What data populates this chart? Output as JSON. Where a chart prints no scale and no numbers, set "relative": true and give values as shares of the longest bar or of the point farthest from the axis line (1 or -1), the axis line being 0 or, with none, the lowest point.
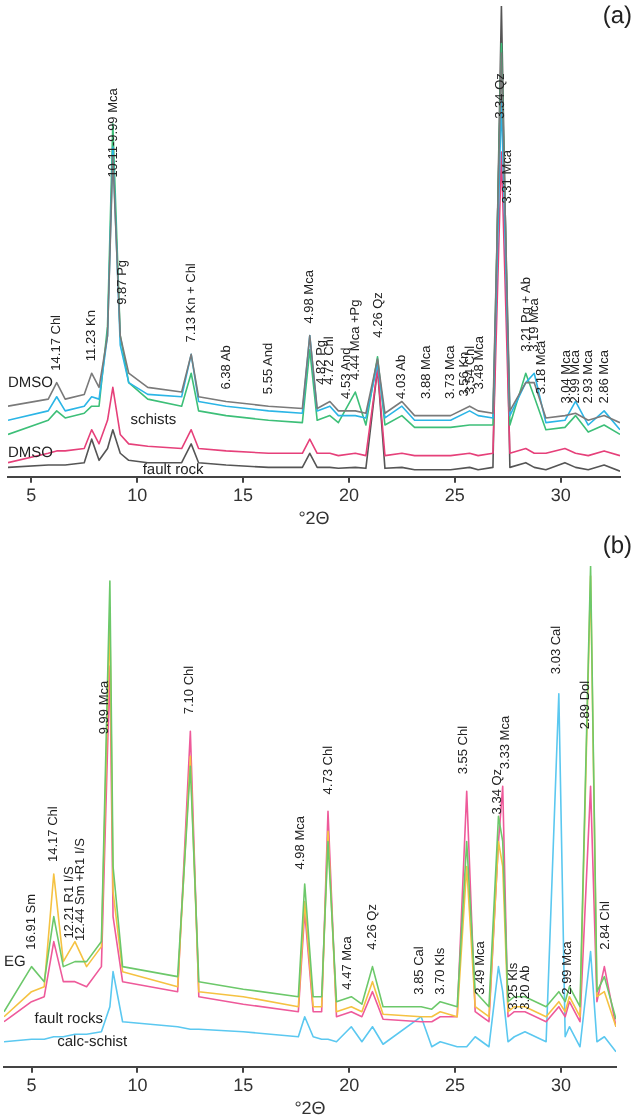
{
  "chart_data": [
    {
      "type": "line",
      "title": "(a)",
      "xlabel": "°2Θ",
      "relative": true,
      "grid": false,
      "legend": false,
      "marker": "none",
      "xlim": [
        3.9,
        32.8
      ],
      "xticks": [
        5,
        10,
        15,
        20,
        25,
        30
      ],
      "x": [
        3.9,
        5.8,
        6.2,
        6.6,
        7.5,
        7.85,
        8.2,
        8.6,
        8.85,
        9.2,
        9.6,
        10.5,
        12.1,
        12.55,
        12.9,
        14.2,
        16.2,
        17.8,
        18.15,
        18.5,
        19.1,
        19.5,
        20.3,
        20.8,
        21.35,
        21.7,
        22.5,
        23.1,
        24.8,
        25.7,
        26.1,
        26.8,
        27.2,
        27.6,
        28.35,
        28.75,
        29.3,
        30.2,
        30.7,
        31.3,
        32.05,
        32.8
      ],
      "series": [
        {
          "color": "#7a7a7a",
          "values": [
            0.15,
            0.165,
            0.2,
            0.165,
            0.175,
            0.22,
            0.19,
            0.3,
            0.68,
            0.3,
            0.22,
            0.19,
            0.18,
            0.26,
            0.17,
            0.16,
            0.15,
            0.145,
            0.3,
            0.145,
            0.16,
            0.14,
            0.14,
            0.135,
            0.25,
            0.135,
            0.16,
            0.13,
            0.13,
            0.15,
            0.14,
            0.135,
            0.9,
            0.14,
            0.2,
            0.2,
            0.125,
            0.13,
            0.135,
            0.12,
            0.13,
            0.115
          ]
        },
        {
          "color": "#2bb5e6",
          "values": [
            0.12,
            0.14,
            0.17,
            0.14,
            0.15,
            0.17,
            0.165,
            0.3,
            0.7,
            0.28,
            0.2,
            0.175,
            0.17,
            0.26,
            0.16,
            0.15,
            0.14,
            0.135,
            0.3,
            0.14,
            0.15,
            0.13,
            0.13,
            0.125,
            0.24,
            0.125,
            0.15,
            0.12,
            0.12,
            0.14,
            0.13,
            0.125,
            0.8,
            0.13,
            0.2,
            0.22,
            0.115,
            0.12,
            0.16,
            0.11,
            0.14,
            0.1
          ]
        },
        {
          "color": "#3dbf78",
          "values": [
            0.09,
            0.12,
            0.14,
            0.125,
            0.135,
            0.15,
            0.15,
            0.32,
            0.75,
            0.3,
            0.2,
            0.165,
            0.15,
            0.22,
            0.14,
            0.13,
            0.12,
            0.115,
            0.27,
            0.12,
            0.13,
            0.115,
            0.18,
            0.11,
            0.255,
            0.11,
            0.13,
            0.105,
            0.105,
            0.11,
            0.11,
            0.11,
            0.92,
            0.11,
            0.22,
            0.17,
            0.1,
            0.105,
            0.13,
            0.095,
            0.11,
            0.09
          ]
        },
        {
          "color": "#e6407a",
          "values": [
            0.03,
            0.05,
            0.055,
            0.055,
            0.06,
            0.1,
            0.07,
            0.12,
            0.19,
            0.09,
            0.07,
            0.065,
            0.06,
            0.1,
            0.06,
            0.055,
            0.05,
            0.05,
            0.08,
            0.05,
            0.05,
            0.045,
            0.05,
            0.045,
            0.23,
            0.045,
            0.05,
            0.045,
            0.045,
            0.05,
            0.045,
            0.05,
            0.69,
            0.05,
            0.06,
            0.05,
            0.05,
            0.06,
            0.05,
            0.045,
            0.055,
            0.045
          ]
        },
        {
          "color": "#555555",
          "values": [
            0.02,
            0.025,
            0.025,
            0.025,
            0.03,
            0.08,
            0.035,
            0.06,
            0.1,
            0.05,
            0.035,
            0.03,
            0.03,
            0.07,
            0.03,
            0.025,
            0.02,
            0.02,
            0.05,
            0.02,
            0.02,
            0.018,
            0.02,
            0.018,
            0.23,
            0.018,
            0.02,
            0.015,
            0.015,
            0.02,
            0.015,
            0.02,
            1.0,
            0.02,
            0.03,
            0.02,
            0.015,
            0.03,
            0.02,
            0.015,
            0.025,
            0.012
          ]
        }
      ],
      "annotations": [
        "DMSO",
        "schists",
        "DMSO",
        "fault rock",
        {
          "text": "14.17 Chl",
          "x": 6.2,
          "y": 0.2
        },
        {
          "text": "11.23 Kn",
          "x": 7.85,
          "y": 0.22
        },
        {
          "text": "9.87 Pg",
          "x": 9.3,
          "y": 0.34
        },
        {
          "text": "10.11-9.99 Mca",
          "x": 8.9,
          "y": 0.61
        },
        {
          "text": "7.13 Kn + Chl",
          "x": 12.55,
          "y": 0.26
        },
        {
          "text": "6.38 Ab",
          "x": 14.2,
          "y": 0.16
        },
        {
          "text": "5.55 And",
          "x": 16.2,
          "y": 0.15
        },
        {
          "text": "4.98 Mca",
          "x": 18.15,
          "y": 0.3
        },
        {
          "text": "4.82 Pg",
          "x": 18.7,
          "y": 0.17
        },
        {
          "text": "4.72 Chl",
          "x": 19.1,
          "y": 0.17
        },
        {
          "text": "4.53 And",
          "x": 19.9,
          "y": 0.14
        },
        {
          "text": "4.44 Mca +Pg",
          "x": 20.3,
          "y": 0.18
        },
        {
          "text": "4.26 Qz",
          "x": 21.4,
          "y": 0.27
        },
        {
          "text": "4.03 Ab",
          "x": 22.5,
          "y": 0.14
        },
        {
          "text": "3.88 Mca",
          "x": 23.65,
          "y": 0.14
        },
        {
          "text": "3.73 Mca",
          "x": 24.8,
          "y": 0.14
        },
        {
          "text": "3.56 Kn",
          "x": 25.45,
          "y": 0.145
        },
        {
          "text": "3.54 Chl",
          "x": 25.75,
          "y": 0.15
        },
        {
          "text": "3.48 Mca",
          "x": 26.15,
          "y": 0.16
        },
        {
          "text": "3.34 Qz",
          "x": 27.15,
          "y": 0.735
        },
        {
          "text": "3.31 Mca",
          "x": 27.5,
          "y": 0.555
        },
        {
          "text": "3.21 Pg + Ab",
          "x": 28.4,
          "y": 0.24
        },
        {
          "text": "3.19 Mca",
          "x": 28.75,
          "y": 0.24
        },
        {
          "text": "3.18 Mca",
          "x": 29.1,
          "y": 0.15
        },
        {
          "text": "3.04 Mca",
          "x": 30.25,
          "y": 0.13
        },
        {
          "text": "2.99 Mca",
          "x": 30.7,
          "y": 0.13
        },
        {
          "text": "2.93 Mca",
          "x": 31.3,
          "y": 0.13
        },
        {
          "text": "2.86 Mca",
          "x": 32.05,
          "y": 0.13
        }
      ]
    },
    {
      "type": "line",
      "title": "(b)",
      "xlabel": "°2Θ",
      "relative": true,
      "grid": false,
      "legend": false,
      "marker": "none",
      "xlim": [
        3.7,
        32.6
      ],
      "xticks": [
        5,
        10,
        15,
        20,
        25,
        30
      ],
      "x": [
        3.7,
        5.0,
        5.6,
        6.05,
        6.5,
        7.05,
        7.6,
        8.3,
        8.7,
        8.85,
        9.3,
        11.9,
        12.5,
        12.9,
        15,
        17.6,
        17.9,
        18.3,
        18.7,
        19.0,
        19.4,
        20.1,
        20.6,
        21.1,
        21.6,
        23.4,
        23.9,
        24.3,
        25.1,
        25.55,
        25.95,
        26.6,
        27.05,
        27.25,
        27.5,
        27.8,
        28.3,
        29.3,
        29.9,
        30.2,
        30.4,
        30.9,
        31.4,
        31.7,
        32.05,
        32.6
      ],
      "series": [
        {
          "color": "#6cc86a",
          "values": [
            0.11,
            0.2,
            0.17,
            0.3,
            0.2,
            0.21,
            0.21,
            0.25,
            0.97,
            0.4,
            0.2,
            0.18,
            0.6,
            0.17,
            0.155,
            0.14,
            0.365,
            0.14,
            0.14,
            0.45,
            0.13,
            0.14,
            0.125,
            0.2,
            0.12,
            0.12,
            0.115,
            0.13,
            0.12,
            0.45,
            0.15,
            0.12,
            0.5,
            0.45,
            0.13,
            0.14,
            0.14,
            0.12,
            0.15,
            0.13,
            0.16,
            0.12,
            1.0,
            0.15,
            0.18,
            0.095
          ]
        },
        {
          "color": "#f5c242",
          "values": [
            0.1,
            0.15,
            0.16,
            0.385,
            0.21,
            0.25,
            0.2,
            0.24,
            0.9,
            0.35,
            0.19,
            0.16,
            0.62,
            0.15,
            0.14,
            0.12,
            0.33,
            0.12,
            0.12,
            0.47,
            0.11,
            0.12,
            0.11,
            0.17,
            0.105,
            0.1,
            0.1,
            0.11,
            0.1,
            0.4,
            0.12,
            0.1,
            0.45,
            0.4,
            0.11,
            0.12,
            0.12,
            0.1,
            0.13,
            0.11,
            0.14,
            0.1,
            0.98,
            0.14,
            0.15,
            0.08
          ]
        },
        {
          "color": "#ee5a9a",
          "values": [
            0.09,
            0.13,
            0.14,
            0.25,
            0.17,
            0.17,
            0.16,
            0.2,
            0.8,
            0.3,
            0.17,
            0.15,
            0.67,
            0.14,
            0.125,
            0.11,
            0.31,
            0.11,
            0.11,
            0.51,
            0.1,
            0.11,
            0.1,
            0.15,
            0.095,
            0.09,
            0.09,
            0.1,
            0.1,
            0.55,
            0.11,
            0.09,
            0.45,
            0.56,
            0.1,
            0.11,
            0.11,
            0.09,
            0.12,
            0.1,
            0.13,
            0.09,
            0.56,
            0.13,
            0.2,
            0.08
          ]
        },
        {
          "color": "#5bc8f0",
          "values": [
            0.05,
            0.055,
            0.055,
            0.06,
            0.06,
            0.065,
            0.065,
            0.07,
            0.12,
            0.19,
            0.09,
            0.08,
            0.075,
            0.075,
            0.07,
            0.06,
            0.1,
            0.06,
            0.055,
            0.055,
            0.05,
            0.08,
            0.05,
            0.08,
            0.045,
            0.1,
            0.04,
            0.05,
            0.04,
            0.04,
            0.06,
            0.04,
            0.2,
            0.15,
            0.05,
            0.06,
            0.07,
            0.05,
            0.745,
            0.06,
            0.08,
            0.04,
            0.23,
            0.05,
            0.06,
            0.03
          ]
        }
      ],
      "annotations": [
        "EG",
        "fault rocks",
        "calc-schist",
        {
          "text": "16.91 Sm",
          "x": 5.0,
          "y": 0.21
        },
        {
          "text": "14.17 Chl",
          "x": 6.05,
          "y": 0.385
        },
        {
          "text": "12.44 Sm +R1 I/S",
          "x": 7.3,
          "y": 0.227
        },
        {
          "text": "12.21 R1 I/S",
          "x": 6.8,
          "y": 0.232
        },
        {
          "text": "9.99 Mca",
          "x": 8.45,
          "y": 0.64
        },
        {
          "text": "7.10 Chl",
          "x": 12.45,
          "y": 0.68
        },
        {
          "text": "4.98 Mca",
          "x": 17.7,
          "y": 0.37
        },
        {
          "text": "4.73 Chl",
          "x": 19.0,
          "y": 0.52
        },
        {
          "text": "4.47 Mca",
          "x": 19.9,
          "y": 0.13
        },
        {
          "text": "4.26 Qz",
          "x": 21.1,
          "y": 0.21
        },
        {
          "text": "3.85 Cal",
          "x": 23.3,
          "y": 0.12
        },
        {
          "text": "3.70 Kls",
          "x": 24.3,
          "y": 0.12
        },
        {
          "text": "3.55 Chl",
          "x": 25.4,
          "y": 0.56
        },
        {
          "text": "3.49 Mca",
          "x": 26.2,
          "y": 0.12
        },
        {
          "text": "3.34 Qz",
          "x": 27.0,
          "y": 0.48
        },
        {
          "text": "3.33 Mca",
          "x": 27.4,
          "y": 0.57
        },
        {
          "text": "3.25 Kls",
          "x": 27.75,
          "y": 0.09
        },
        {
          "text": "3.20 Ab",
          "x": 28.3,
          "y": 0.09
        },
        {
          "text": "3.03 Cal",
          "x": 29.8,
          "y": 0.76
        },
        {
          "text": "2.99 Mca",
          "x": 30.3,
          "y": 0.12
        },
        {
          "text": "2.89 Dol",
          "x": 31.15,
          "y": 0.65
        },
        {
          "text": "2.84 Chl",
          "x": 32.1,
          "y": 0.21
        }
      ]
    }
  ]
}
